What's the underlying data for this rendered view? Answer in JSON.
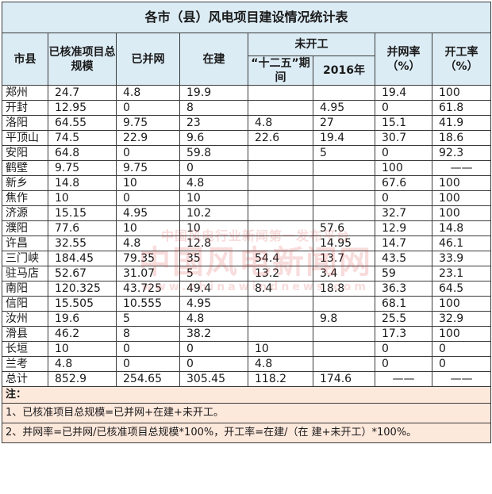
{
  "title": "各市（县）风电项目建设情况统计表",
  "headers": {
    "city": "市县",
    "approved": "已核准项目总规模",
    "grid": "已并网",
    "building": "在建",
    "not_started": "未开工",
    "plan125": "“十二五”期间",
    "y2016": "2016年",
    "grid_rate": "并网率（%）",
    "start_rate": "开工率（%）"
  },
  "rows": [
    [
      "郑州",
      "24.7",
      "4.8",
      "19.9",
      "",
      "",
      "19.4",
      "100"
    ],
    [
      "开封",
      "12.95",
      "0",
      "8",
      "",
      "4.95",
      "0",
      "61.8"
    ],
    [
      "洛阳",
      "64.55",
      "9.75",
      "23",
      "4.8",
      "27",
      "15.1",
      "41.9"
    ],
    [
      "平顶山",
      "74.5",
      "22.9",
      "9.6",
      "22.6",
      "19.4",
      "30.7",
      "18.6"
    ],
    [
      "安阳",
      "64.8",
      "0",
      "59.8",
      "",
      "5",
      "0",
      "92.3"
    ],
    [
      "鹤壁",
      "9.75",
      "9.75",
      "0",
      "",
      "",
      "100",
      "——"
    ],
    [
      "新乡",
      "14.8",
      "10",
      "4.8",
      "",
      "",
      "67.6",
      "100"
    ],
    [
      "焦作",
      "10",
      "0",
      "10",
      "",
      "",
      "0",
      "100"
    ],
    [
      "济源",
      "15.15",
      "4.95",
      "10.2",
      "",
      "",
      "32.7",
      "100"
    ],
    [
      "濮阳",
      "77.6",
      "10",
      "10",
      "",
      "57.6",
      "12.9",
      "14.8"
    ],
    [
      "许昌",
      "32.55",
      "4.8",
      "12.8",
      "",
      "14.95",
      "14.7",
      "46.1"
    ],
    [
      "三门峡",
      "184.45",
      "79.35",
      "35",
      "54.4",
      "13.7",
      "43.5",
      "33.9"
    ],
    [
      "驻马店",
      "52.67",
      "31.07",
      "5",
      "13.2",
      "3.4",
      "59",
      "23.1"
    ],
    [
      "南阳",
      "120.325",
      "43.725",
      "49.4",
      "8.4",
      "18.8",
      "36.3",
      "64.5"
    ],
    [
      "信阳",
      "15.505",
      "10.555",
      "4.95",
      "",
      "",
      "68.1",
      "100"
    ],
    [
      "汝州",
      "19.6",
      "5",
      "4.8",
      "",
      "9.8",
      "25.5",
      "32.9"
    ],
    [
      "滑县",
      "46.2",
      "8",
      "38.2",
      "",
      "",
      "17.3",
      "100"
    ],
    [
      "长垣",
      "10",
      "0",
      "0",
      "10",
      "",
      "0",
      "0"
    ],
    [
      "兰考",
      "4.8",
      "0",
      "0",
      "4.8",
      "",
      "0",
      "0"
    ],
    [
      "总计",
      "852.9",
      "254.65",
      "305.45",
      "118.2",
      "174.6",
      "——",
      "——"
    ]
  ],
  "notes": {
    "label": "注：",
    "line1": "1、已核准项目总规模=已并网+在建+未开工。",
    "line2": "2、并网率=已并网/已核准项目总规模*100%，开工率=在建/（在 建+未开工）*100%。"
  },
  "watermark": {
    "line1": "中国风电行业新闻第一发布平台",
    "line2": "中国风电新闻网",
    "line3": "www.chinawindnews.com"
  }
}
